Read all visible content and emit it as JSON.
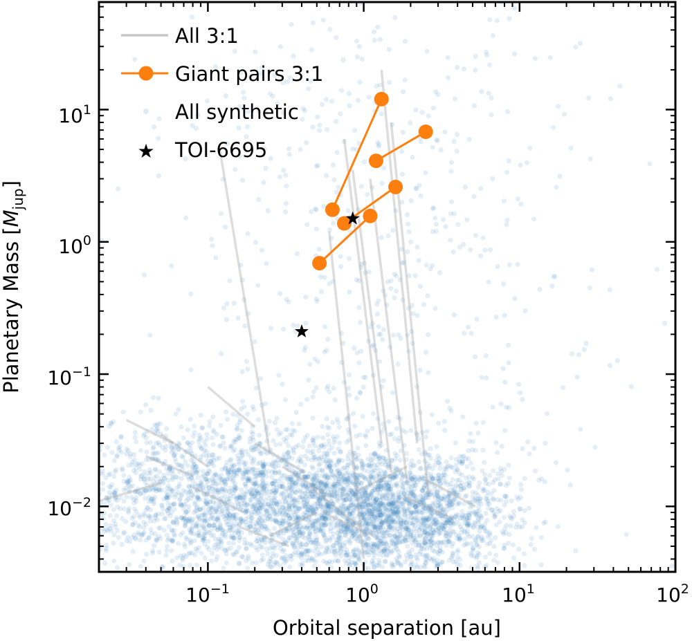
{
  "chart_data": {
    "type": "scatter",
    "xlabel": "Orbital separation [au]",
    "ylabel": "Planetary Mass [M_jup]",
    "ylabel_parts": {
      "main": "Planetary Mass [",
      "sym": "M",
      "sub": "jup",
      "close": "]"
    },
    "xscale": "log",
    "yscale": "log",
    "xlim": [
      0.02,
      100
    ],
    "ylim": [
      0.0032,
      65
    ],
    "xticks": [
      {
        "value": 0.1,
        "base": "10",
        "exp": "−1"
      },
      {
        "value": 1,
        "base": "10",
        "exp": "0"
      },
      {
        "value": 10,
        "base": "10",
        "exp": "1"
      },
      {
        "value": 100,
        "base": "10",
        "exp": "2"
      }
    ],
    "yticks": [
      {
        "value": 0.01,
        "base": "10",
        "exp": "−2"
      },
      {
        "value": 0.1,
        "base": "10",
        "exp": "−1"
      },
      {
        "value": 1,
        "base": "10",
        "exp": "0"
      },
      {
        "value": 10,
        "base": "10",
        "exp": "1"
      }
    ],
    "legend": {
      "position": "top-left",
      "entries": [
        {
          "label": "All 3:1",
          "style": "gray-line"
        },
        {
          "label": "Giant pairs 3:1",
          "style": "orange-line-marker"
        },
        {
          "label": "All synthetic",
          "style": "blue-dot"
        },
        {
          "label": "TOI-6695",
          "style": "black-star"
        }
      ]
    },
    "series": [
      {
        "name": "All synthetic",
        "color": "#1f77b4",
        "opacity": 0.12,
        "clusters": [
          {
            "center": [
              1.0,
              0.009
            ],
            "spread": [
              0.42,
              0.26
            ],
            "n": 1500
          },
          {
            "center": [
              0.08,
              0.012
            ],
            "spread": [
              0.5,
              0.3
            ],
            "n": 1300
          },
          {
            "center": [
              0.35,
              0.011
            ],
            "spread": [
              0.5,
              0.28
            ],
            "n": 900
          },
          {
            "center": [
              2.5,
              0.008
            ],
            "spread": [
              0.3,
              0.22
            ],
            "n": 700
          },
          {
            "center": [
              1.2,
              0.5
            ],
            "spread": [
              0.55,
              0.8
            ],
            "n": 260
          },
          {
            "center": [
              1.0,
              10.0
            ],
            "spread": [
              0.8,
              0.5
            ],
            "n": 180
          },
          {
            "center": [
              3.0,
              0.1
            ],
            "spread": [
              0.8,
              1.0
            ],
            "n": 150
          }
        ]
      },
      {
        "name": "All 3:1",
        "color": "#a9a9a9",
        "pairs": [
          [
            [
              0.12,
              4.8
            ],
            [
              0.25,
              0.025
            ]
          ],
          [
            [
              0.75,
              6.0
            ],
            [
              1.3,
              0.03
            ]
          ],
          [
            [
              0.85,
              3.5
            ],
            [
              1.5,
              0.018
            ]
          ],
          [
            [
              1.3,
              20.0
            ],
            [
              2.2,
              0.03
            ]
          ],
          [
            [
              1.5,
              8.0
            ],
            [
              2.6,
              0.012
            ]
          ],
          [
            [
              0.6,
              1.2
            ],
            [
              1.0,
              0.004
            ]
          ],
          [
            [
              1.1,
              3.0
            ],
            [
              1.9,
              0.015
            ]
          ],
          [
            [
              0.02,
              0.011
            ],
            [
              0.05,
              0.015
            ]
          ],
          [
            [
              0.05,
              0.035
            ],
            [
              0.1,
              0.02
            ]
          ],
          [
            [
              0.1,
              0.08
            ],
            [
              0.2,
              0.04
            ]
          ],
          [
            [
              0.3,
              0.02
            ],
            [
              0.6,
              0.012
            ]
          ],
          [
            [
              0.45,
              0.014
            ],
            [
              0.95,
              0.007
            ]
          ],
          [
            [
              0.04,
              0.024
            ],
            [
              0.08,
              0.017
            ]
          ],
          [
            [
              0.08,
              0.014
            ],
            [
              0.17,
              0.009
            ]
          ],
          [
            [
              0.16,
              0.007
            ],
            [
              0.33,
              0.005
            ]
          ],
          [
            [
              0.55,
              0.009
            ],
            [
              1.15,
              0.006
            ]
          ],
          [
            [
              0.9,
              0.013
            ],
            [
              1.9,
              0.02
            ]
          ],
          [
            [
              1.8,
              0.012
            ],
            [
              3.8,
              0.008
            ]
          ],
          [
            [
              2.5,
              0.016
            ],
            [
              5.2,
              0.01
            ]
          ],
          [
            [
              0.03,
              0.045
            ],
            [
              0.06,
              0.03
            ]
          ],
          [
            [
              0.2,
              0.03
            ],
            [
              0.42,
              0.018
            ]
          ],
          [
            [
              0.25,
              0.006
            ],
            [
              0.5,
              0.009
            ]
          ]
        ]
      },
      {
        "name": "Giant pairs 3:1",
        "color": "#ff7f0e",
        "pairs": [
          [
            [
              0.63,
              1.75
            ],
            [
              1.3,
              12.0
            ]
          ],
          [
            [
              1.2,
              4.1
            ],
            [
              2.5,
              6.8
            ]
          ],
          [
            [
              0.75,
              1.38
            ],
            [
              1.6,
              2.6
            ]
          ],
          [
            [
              0.52,
              0.69
            ],
            [
              1.1,
              1.57
            ]
          ]
        ]
      },
      {
        "name": "TOI-6695",
        "color": "#000000",
        "marker": "star",
        "points": [
          [
            0.4,
            0.21
          ],
          [
            0.85,
            1.5
          ]
        ]
      }
    ]
  }
}
